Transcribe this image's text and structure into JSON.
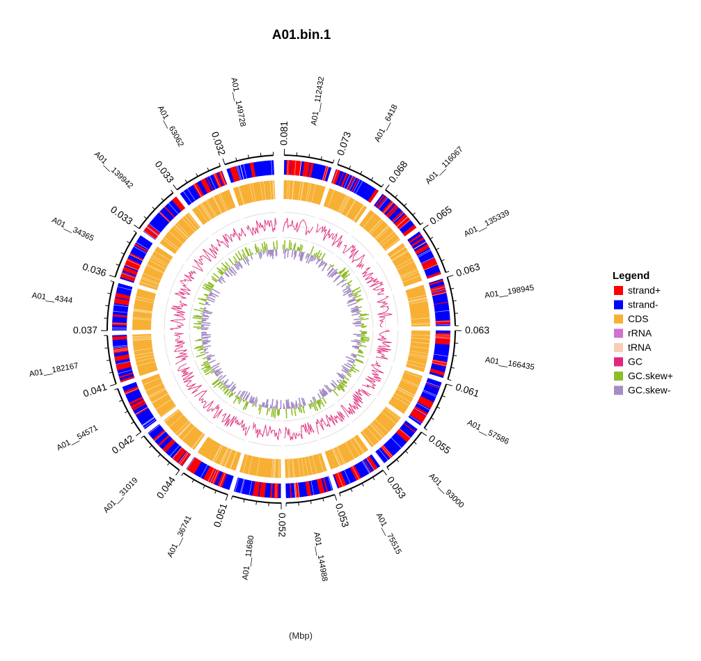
{
  "chart_data": {
    "type": "circos",
    "title": "A01.bin.1",
    "xlabel": "(Mbp)",
    "contigs": [
      {
        "name": "A01__112432",
        "tick": "0.081"
      },
      {
        "name": "A01__6418",
        "tick": "0.073"
      },
      {
        "name": "A01__116067",
        "tick": "0.068"
      },
      {
        "name": "A01__135339",
        "tick": "0.065"
      },
      {
        "name": "A01__198945",
        "tick": "0.063"
      },
      {
        "name": "A01__166435",
        "tick": "0.063"
      },
      {
        "name": "A01__57586",
        "tick": "0.061"
      },
      {
        "name": "A01__93000",
        "tick": "0.055"
      },
      {
        "name": "A01__75515",
        "tick": "0.053"
      },
      {
        "name": "A01__144988",
        "tick": "0.053"
      },
      {
        "name": "A01__11680",
        "tick": "0.052"
      },
      {
        "name": "A01__36741",
        "tick": "0.051"
      },
      {
        "name": "A01__31019",
        "tick": "0.044"
      },
      {
        "name": "A01__54571",
        "tick": "0.042"
      },
      {
        "name": "A01__182167",
        "tick": "0.041"
      },
      {
        "name": "A01__4344",
        "tick": "0.037"
      },
      {
        "name": "A01__34365",
        "tick": "0.036"
      },
      {
        "name": "A01__139942",
        "tick": "0.033"
      },
      {
        "name": "A01__63062",
        "tick": "0.033"
      },
      {
        "name": "A01__149728",
        "tick": "0.032"
      }
    ],
    "tracks": [
      "strand",
      "CDS",
      "GC",
      "GC.skew"
    ],
    "legend": {
      "title": "Legend",
      "position": "right",
      "items": [
        {
          "label": "strand+",
          "color": "#ff0000"
        },
        {
          "label": "strand-",
          "color": "#0000ff"
        },
        {
          "label": "CDS",
          "color": "#f7b034"
        },
        {
          "label": "rRNA",
          "color": "#d070d0"
        },
        {
          "label": "tRNA",
          "color": "#f8cdb5"
        },
        {
          "label": "GC",
          "color": "#e0287a"
        },
        {
          "label": "GC.skew+",
          "color": "#8fbd28"
        },
        {
          "label": "GC.skew-",
          "color": "#a48cc4"
        }
      ]
    }
  }
}
